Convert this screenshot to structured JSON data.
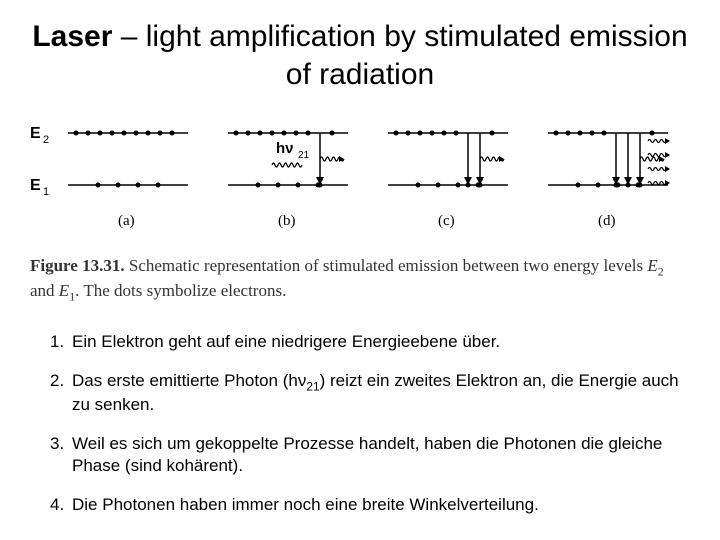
{
  "title": {
    "bold": "Laser",
    "rest": " – light amplification by stimulated emission of radiation"
  },
  "figure": {
    "labels": {
      "E2": "E",
      "E2sub": "2",
      "E1": "E",
      "E1sub": "1"
    },
    "panel_labels": [
      "(a)",
      "(b)",
      "(c)",
      "(d)"
    ],
    "photon_label": "hν",
    "photon_sub": "21",
    "colors": {
      "stroke": "#000000",
      "dot": "#000000",
      "bg": "#ffffff"
    },
    "panels": [
      {
        "top_dots": [
          8,
          20,
          32,
          44,
          56,
          68,
          80,
          92,
          104
        ],
        "bottom_dots": [
          30,
          50,
          70,
          90
        ]
      },
      {
        "top_dots": [
          8,
          20,
          32,
          44,
          56,
          68,
          80,
          104
        ],
        "bottom_dots": [
          30,
          50,
          70,
          90,
          92
        ]
      },
      {
        "top_dots": [
          8,
          20,
          32,
          44,
          56,
          68,
          104
        ],
        "bottom_dots": [
          30,
          50,
          70,
          80,
          90,
          92
        ]
      },
      {
        "top_dots": [
          8,
          20,
          32,
          44,
          56,
          104
        ],
        "bottom_dots": [
          30,
          50,
          68,
          70,
          80,
          90,
          92
        ]
      }
    ]
  },
  "caption": {
    "figlabel": "Figure 13.31.",
    "text1": " Schematic representation of stimulated emission between two energy levels ",
    "e2": "E",
    "e2sub": "2",
    "and": " and ",
    "e1": "E",
    "e1sub": "1",
    "text2": ". The dots symbolize electrons."
  },
  "points": [
    {
      "num": "1.",
      "text": "Ein Elektron geht auf eine niedrigere Energieebene über."
    },
    {
      "num": "2.",
      "text_a": "Das erste emittierte Photon (h",
      "nu": "ν",
      "sub": "21",
      "text_b": ") reizt ein zweites Elektron an, die Energie auch zu senken."
    },
    {
      "num": "3.",
      "text": "Weil es sich um gekoppelte Prozesse handelt, haben die Photonen die gleiche Phase (sind kohärent)."
    },
    {
      "num": "4.",
      "text": "Die Photonen haben immer noch eine breite Winkelverteilung."
    }
  ]
}
